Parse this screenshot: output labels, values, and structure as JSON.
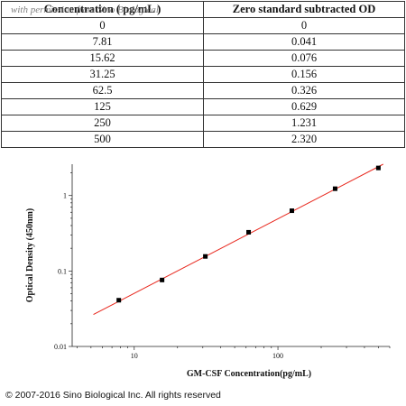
{
  "table": {
    "headers": [
      "Concentration ( pg/mL )",
      "Zero standard subtracted OD"
    ],
    "watermark": "with permission from Sino Biological",
    "rows": [
      [
        "0",
        "0"
      ],
      [
        "7.81",
        "0.041"
      ],
      [
        "15.62",
        "0.076"
      ],
      [
        "31.25",
        "0.156"
      ],
      [
        "62.5",
        "0.326"
      ],
      [
        "125",
        "0.629"
      ],
      [
        "250",
        "1.231"
      ],
      [
        "500",
        "2.320"
      ]
    ]
  },
  "chart_data": {
    "type": "scatter",
    "xlabel": "GM-CSF   Concentration(pg/mL)",
    "ylabel": "Optical Density (450nm)",
    "x_scale": "log",
    "y_scale": "log",
    "xlim": [
      3.7,
      600
    ],
    "ylim": [
      0.01,
      2.6
    ],
    "x_ticks": [
      {
        "value": 10,
        "label": "10"
      },
      {
        "value": 100,
        "label": "100"
      }
    ],
    "y_ticks": [
      {
        "value": 0.01,
        "label": "0.01"
      },
      {
        "value": 0.1,
        "label": "0.1"
      },
      {
        "value": 1,
        "label": "1"
      }
    ],
    "points": {
      "x": [
        7.81,
        15.62,
        31.25,
        62.5,
        125,
        250,
        500
      ],
      "y": [
        0.041,
        0.076,
        0.156,
        0.326,
        0.629,
        1.231,
        2.32
      ]
    },
    "fit_line": {
      "x": [
        5.2,
        540
      ],
      "y": [
        0.0265,
        2.6
      ]
    },
    "marker_color": "#000000",
    "line_color": "#e8281e",
    "grid": false
  },
  "footer": {
    "copyright": "© 2007-2016 Sino Biological Inc. All rights reserved"
  }
}
